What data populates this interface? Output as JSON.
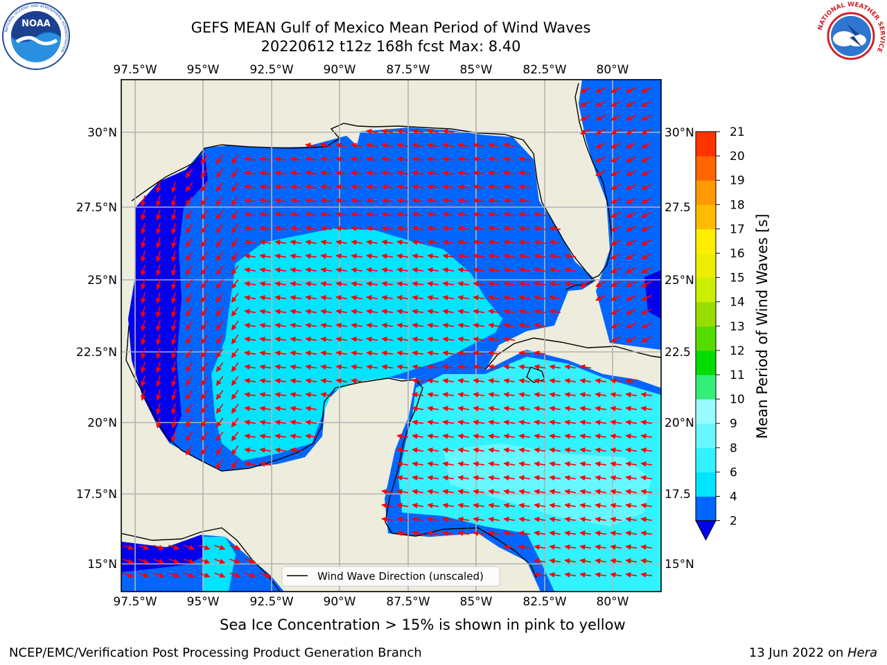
{
  "header": {
    "title_line1": "GEFS MEAN Gulf of Mexico Mean Period of Wind Waves",
    "title_line2": "20220612 t12z 168h fcst   Max: 8.40"
  },
  "logos": {
    "noaa": {
      "center_text": "NOAA",
      "ring_text_top": "NATIONAL OCEANIC AND ATMOSPHERIC ADMINISTRATION",
      "ring_text_bottom": "U.S. DEPARTMENT OF COMMERCE"
    },
    "nws": {
      "ring_text": "NATIONAL WEATHER SERVICE"
    }
  },
  "map": {
    "lon_labels": [
      "97.5°W",
      "95°W",
      "92.5°W",
      "90°W",
      "87.5°W",
      "85°W",
      "82.5°W",
      "80°W"
    ],
    "lat_labels": [
      "30°N",
      "27.5°N",
      "25°N",
      "22.5°N",
      "20°N",
      "17.5°N",
      "15°N"
    ],
    "right_lat_labels": [
      "30°N",
      "27.5",
      "25°N",
      "22.5",
      "20°N",
      "17.5",
      "15°N"
    ],
    "legend_label": "Wind Wave Direction (unscaled)",
    "colors": {
      "land": "#eeecdc",
      "grid": "#b3b3b3",
      "arrow": "#ff0000"
    }
  },
  "colorbar": {
    "label": "Mean Period of Wind Waves [s]",
    "ticks": [
      "2",
      "4",
      "6",
      "8",
      "9",
      "10",
      "11",
      "12",
      "13",
      "14",
      "15",
      "16",
      "17",
      "18",
      "19",
      "20",
      "21"
    ],
    "colors": [
      "#0066ff",
      "#00e5ff",
      "#33f2ff",
      "#66f7ff",
      "#99fbff",
      "#33ee77",
      "#00dd00",
      "#55dd00",
      "#99dd00",
      "#ccee00",
      "#eeee00",
      "#ffee00",
      "#ffbb00",
      "#ff9900",
      "#ff6600",
      "#ff3300"
    ],
    "extend_color": "#0000ee"
  },
  "subtitle": "Sea Ice Concentration > 15% is shown in pink to yellow",
  "footer": {
    "left": "NCEP/EMC/Verification Post Processing Product Generation Branch",
    "right_prefix": "13 Jun 2022 on ",
    "right_host": "Hera"
  }
}
